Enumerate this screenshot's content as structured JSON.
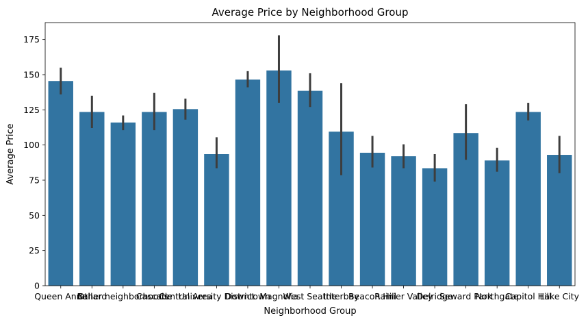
{
  "chart_data": {
    "type": "bar",
    "title": "Average Price by Neighborhood Group",
    "xlabel": "Neighborhood Group",
    "ylabel": "Average Price",
    "ylim": [
      0,
      187
    ],
    "yticks": [
      0,
      25,
      50,
      75,
      100,
      125,
      150,
      175
    ],
    "grid": false,
    "bar_color": "#3274a1",
    "error_color": "#3d3d3d",
    "categories": [
      "Queen Anne",
      "Ballard",
      "Other neighborhoods",
      "Cascade",
      "Central Area",
      "University District",
      "Downtown",
      "Magnolia",
      "West Seattle",
      "Interbay",
      "Beacon Hill",
      "Rainier Valley",
      "Delridge",
      "Seward Park",
      "Northgate",
      "Capitol Hill",
      "Lake City"
    ],
    "values": [
      145.5,
      123.5,
      116,
      123.5,
      125.5,
      93.5,
      146.5,
      153,
      138.5,
      109.5,
      94.5,
      92,
      83.5,
      108.5,
      89,
      123.5,
      93
    ],
    "ci_low": [
      136,
      112,
      110.5,
      110.5,
      118,
      83.5,
      141,
      130,
      127,
      78.5,
      84,
      83.5,
      74,
      89.5,
      81,
      117.5,
      80
    ],
    "ci_high": [
      155,
      135,
      121,
      137,
      133,
      105.5,
      152.5,
      178,
      151,
      144,
      106.5,
      100.5,
      93.5,
      129,
      98,
      130,
      106.5
    ]
  }
}
